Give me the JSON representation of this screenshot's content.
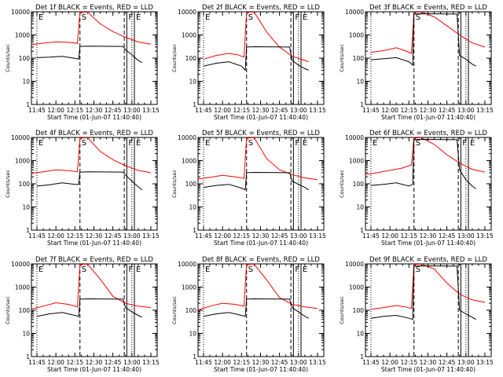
{
  "colors": {
    "events": "#000000",
    "lld": "#ff0000",
    "axis": "#000000",
    "background": "#ffffff"
  },
  "axis": {
    "xticks": [
      "11:45",
      "12:00",
      "12:15",
      "12:30",
      "12:45",
      "13:00",
      "13:15"
    ],
    "xtick_minutes": [
      0,
      15,
      30,
      45,
      60,
      75,
      90
    ],
    "yticks": [
      "1",
      "10",
      "100",
      "1000",
      "10000"
    ],
    "ylabel": "Counts/sec",
    "xlabel": "Start Time (01-Jun-07 11:40:40)"
  },
  "chart_data": [
    {
      "type": "line",
      "title": "Det 1f BLACK = Events, RED = LLD",
      "xlabel": "Start Time (01-Jun-07 11:40:40)",
      "ylabel": "Counts/sec",
      "xlim": [
        "11:40:40",
        "13:20:00"
      ],
      "ylim": [
        1,
        10000
      ],
      "yscale": "log",
      "grid": false,
      "markers": [
        {
          "label": "E",
          "x": "11:45",
          "style": "dotted"
        },
        {
          "label": "S",
          "x": "12:19",
          "style": "dashed"
        },
        {
          "label": "",
          "x": "12:54",
          "style": "dashed"
        },
        {
          "label": "F",
          "x": "12:56",
          "style": "solid"
        },
        {
          "label": "",
          "x": "13:00",
          "style": "dotted"
        },
        {
          "label": "E",
          "x": "13:02",
          "style": "solid"
        }
      ],
      "series": [
        {
          "color": "red",
          "x": [
            "11:40",
            "11:50",
            "12:00",
            "12:10",
            "12:17",
            "12:19",
            "12:25",
            "12:35",
            "12:45",
            "12:55",
            "13:05",
            "13:15"
          ],
          "y": [
            380,
            440,
            500,
            480,
            430,
            9500,
            9800,
            3000,
            1400,
            800,
            500,
            400
          ]
        },
        {
          "color": "black",
          "x": [
            "11:45",
            "11:55",
            "12:05",
            "12:15",
            "12:18",
            "12:19",
            "12:25",
            "12:53",
            "12:55",
            "13:00",
            "13:05",
            "13:08"
          ],
          "y": [
            105,
            110,
            120,
            98,
            90,
            320,
            330,
            320,
            230,
            140,
            80,
            65
          ]
        }
      ]
    },
    {
      "type": "line",
      "title": "Det 2f BLACK = Events, RED = LLD",
      "xlabel": "Start Time (01-Jun-07 11:40:40)",
      "ylabel": "Counts/sec",
      "xlim": [
        "11:40:40",
        "13:20:00"
      ],
      "ylim": [
        1,
        10000
      ],
      "yscale": "log",
      "grid": false,
      "markers": [
        {
          "label": "E",
          "x": "11:45",
          "style": "dotted"
        },
        {
          "label": "S",
          "x": "12:19",
          "style": "dashed"
        },
        {
          "label": "",
          "x": "12:54",
          "style": "dashed"
        },
        {
          "label": "F",
          "x": "12:56",
          "style": "solid"
        },
        {
          "label": "",
          "x": "13:00",
          "style": "dotted"
        },
        {
          "label": "E",
          "x": "13:02",
          "style": "solid"
        }
      ],
      "series": [
        {
          "color": "red",
          "x": [
            "11:45",
            "11:55",
            "12:05",
            "12:12",
            "12:17",
            "12:19",
            "12:25",
            "12:35",
            "12:45",
            "12:55",
            "13:05",
            "13:08"
          ],
          "y": [
            90,
            130,
            160,
            140,
            110,
            9500,
            9800,
            1300,
            300,
            120,
            80,
            70
          ]
        },
        {
          "color": "black",
          "x": [
            "11:45",
            "11:55",
            "12:05",
            "12:15",
            "12:18",
            "12:19",
            "12:25",
            "12:53",
            "12:55",
            "13:00",
            "13:05",
            "13:08"
          ],
          "y": [
            45,
            60,
            70,
            45,
            30,
            300,
            310,
            300,
            80,
            50,
            35,
            30
          ]
        }
      ]
    },
    {
      "type": "line",
      "title": "Det 3f BLACK = Events, RED = LLD",
      "xlabel": "Start Time (01-Jun-07 11:40:40)",
      "ylabel": "Counts/sec",
      "xlim": [
        "11:40:40",
        "13:20:00"
      ],
      "ylim": [
        1,
        10000
      ],
      "yscale": "log",
      "grid": false,
      "markers": [
        {
          "label": "",
          "x": "11:45",
          "style": "dotted"
        },
        {
          "label": "S",
          "x": "12:19",
          "style": "dashed"
        },
        {
          "label": "",
          "x": "12:54",
          "style": "dashed"
        },
        {
          "label": "",
          "x": "12:56",
          "style": "solid"
        },
        {
          "label": "",
          "x": "13:00",
          "style": "dotted"
        },
        {
          "label": "",
          "x": "13:02",
          "style": "solid"
        }
      ],
      "series": [
        {
          "color": "red",
          "x": [
            "11:45",
            "11:55",
            "12:05",
            "12:12",
            "12:17",
            "12:19",
            "12:25",
            "12:35",
            "12:45",
            "12:55",
            "13:05",
            "13:15"
          ],
          "y": [
            180,
            210,
            280,
            210,
            160,
            9500,
            9800,
            6000,
            2500,
            1000,
            450,
            300
          ]
        },
        {
          "color": "black",
          "x": [
            "11:45",
            "11:55",
            "12:05",
            "12:15",
            "12:18",
            "12:19",
            "12:25",
            "12:53",
            "12:55",
            "13:00",
            "13:05",
            "13:08"
          ],
          "y": [
            85,
            95,
            105,
            70,
            50,
            8000,
            8200,
            8000,
            130,
            90,
            55,
            45
          ]
        }
      ]
    },
    {
      "type": "line",
      "title": "Det 4f BLACK = Events, RED = LLD",
      "xlabel": "Start Time (01-Jun-07 11:40:40)",
      "ylabel": "Counts/sec",
      "xlim": [
        "11:40:40",
        "13:20:00"
      ],
      "ylim": [
        1,
        10000
      ],
      "yscale": "log",
      "grid": false,
      "markers": [
        {
          "label": "E",
          "x": "11:45",
          "style": "dotted"
        },
        {
          "label": "S",
          "x": "12:19",
          "style": "dashed"
        },
        {
          "label": "",
          "x": "12:54",
          "style": "dashed"
        },
        {
          "label": "F",
          "x": "12:56",
          "style": "solid"
        },
        {
          "label": "",
          "x": "13:00",
          "style": "dotted"
        },
        {
          "label": "E",
          "x": "13:02",
          "style": "solid"
        }
      ],
      "series": [
        {
          "color": "red",
          "x": [
            "11:40",
            "11:50",
            "12:00",
            "12:10",
            "12:17",
            "12:19",
            "12:25",
            "12:35",
            "12:45",
            "12:55",
            "13:05",
            "13:15"
          ],
          "y": [
            280,
            330,
            400,
            370,
            330,
            9500,
            9800,
            2500,
            1100,
            600,
            380,
            300
          ]
        },
        {
          "color": "black",
          "x": [
            "11:45",
            "11:55",
            "12:05",
            "12:15",
            "12:18",
            "12:19",
            "12:25",
            "12:53",
            "12:55",
            "13:00",
            "13:05",
            "13:08"
          ],
          "y": [
            80,
            90,
            110,
            95,
            95,
            320,
            330,
            320,
            240,
            130,
            75,
            55
          ]
        }
      ]
    },
    {
      "type": "line",
      "title": "Det 5f BLACK = Events, RED = LLD",
      "xlabel": "Start Time (01-Jun-07 11:40:40)",
      "ylabel": "Counts/sec",
      "xlim": [
        "11:40:40",
        "13:20:00"
      ],
      "ylim": [
        1,
        10000
      ],
      "yscale": "log",
      "grid": false,
      "markers": [
        {
          "label": "E",
          "x": "11:45",
          "style": "dotted"
        },
        {
          "label": "S",
          "x": "12:19",
          "style": "dashed"
        },
        {
          "label": "",
          "x": "12:54",
          "style": "dashed"
        },
        {
          "label": "F",
          "x": "12:56",
          "style": "solid"
        },
        {
          "label": "",
          "x": "13:00",
          "style": "dotted"
        },
        {
          "label": "E",
          "x": "13:02",
          "style": "solid"
        }
      ],
      "series": [
        {
          "color": "red",
          "x": [
            "11:40",
            "11:50",
            "12:00",
            "12:10",
            "12:17",
            "12:19",
            "12:25",
            "12:35",
            "12:45",
            "12:55",
            "13:05",
            "13:15"
          ],
          "y": [
            160,
            190,
            230,
            200,
            170,
            9500,
            9800,
            1200,
            400,
            250,
            180,
            150
          ]
        },
        {
          "color": "black",
          "x": [
            "11:45",
            "11:55",
            "12:05",
            "12:15",
            "12:18",
            "12:19",
            "12:25",
            "12:53",
            "12:55",
            "13:00",
            "13:05",
            "13:08"
          ],
          "y": [
            70,
            85,
            95,
            65,
            55,
            300,
            310,
            300,
            130,
            95,
            70,
            55
          ]
        }
      ]
    },
    {
      "type": "line",
      "title": "Det 6f BLACK = Events, RED = LLD",
      "xlabel": "Start Time (01-Jun-07 11:40:40)",
      "ylabel": "Counts/sec",
      "xlim": [
        "11:40:40",
        "13:20:00"
      ],
      "ylim": [
        1,
        10000
      ],
      "yscale": "log",
      "grid": false,
      "markers": [
        {
          "label": "E",
          "x": "11:45",
          "style": "dotted"
        },
        {
          "label": "S",
          "x": "12:19",
          "style": "dashed"
        },
        {
          "label": "",
          "x": "12:54",
          "style": "dashed"
        },
        {
          "label": "F",
          "x": "12:56",
          "style": "solid"
        },
        {
          "label": "",
          "x": "13:00",
          "style": "dotted"
        },
        {
          "label": "E",
          "x": "13:02",
          "style": "solid"
        }
      ],
      "series": [
        {
          "color": "red",
          "x": [
            "11:40",
            "11:50",
            "12:00",
            "12:10",
            "12:17",
            "12:19",
            "12:25",
            "12:35",
            "12:45",
            "12:55",
            "13:05",
            "13:15"
          ],
          "y": [
            250,
            300,
            380,
            480,
            650,
            9500,
            9800,
            5000,
            1800,
            800,
            420,
            320
          ]
        },
        {
          "color": "black",
          "x": [
            "11:45",
            "11:55",
            "12:05",
            "12:15",
            "12:18",
            "12:19",
            "12:25",
            "12:53",
            "12:55",
            "13:00",
            "13:05",
            "13:08"
          ],
          "y": [
            85,
            95,
            110,
            80,
            95,
            8000,
            8200,
            8000,
            400,
            150,
            80,
            60
          ]
        }
      ]
    },
    {
      "type": "line",
      "title": "Det 7f BLACK = Events, RED = LLD",
      "xlabel": "Start Time (01-Jun-07 11:40:40)",
      "ylabel": "Counts/sec",
      "xlim": [
        "11:40:40",
        "13:20:00"
      ],
      "ylim": [
        1,
        10000
      ],
      "yscale": "log",
      "grid": false,
      "markers": [
        {
          "label": "E",
          "x": "11:45",
          "style": "dotted"
        },
        {
          "label": "S",
          "x": "12:19",
          "style": "dashed"
        },
        {
          "label": "",
          "x": "12:54",
          "style": "dashed"
        },
        {
          "label": "F",
          "x": "12:56",
          "style": "solid"
        },
        {
          "label": "",
          "x": "13:00",
          "style": "dotted"
        },
        {
          "label": "E",
          "x": "13:02",
          "style": "solid"
        }
      ],
      "series": [
        {
          "color": "red",
          "x": [
            "11:40",
            "11:50",
            "12:00",
            "12:10",
            "12:17",
            "12:19",
            "12:25",
            "12:35",
            "12:45",
            "12:55",
            "13:05",
            "13:15"
          ],
          "y": [
            110,
            150,
            210,
            180,
            140,
            9500,
            9800,
            2200,
            400,
            200,
            150,
            130
          ]
        },
        {
          "color": "black",
          "x": [
            "11:45",
            "11:55",
            "12:05",
            "12:15",
            "12:18",
            "12:19",
            "12:25",
            "12:53",
            "12:55",
            "13:00",
            "13:05",
            "13:08"
          ],
          "y": [
            55,
            70,
            80,
            60,
            55,
            300,
            310,
            300,
            130,
            85,
            60,
            50
          ]
        }
      ]
    },
    {
      "type": "line",
      "title": "Det 8f BLACK = Events, RED = LLD",
      "xlabel": "Start Time (01-Jun-07 11:40:40)",
      "ylabel": "Counts/sec",
      "xlim": [
        "11:40:40",
        "13:20:00"
      ],
      "ylim": [
        1,
        10000
      ],
      "yscale": "log",
      "grid": false,
      "markers": [
        {
          "label": "E",
          "x": "11:45",
          "style": "dotted"
        },
        {
          "label": "S",
          "x": "12:19",
          "style": "dashed"
        },
        {
          "label": "",
          "x": "12:54",
          "style": "dashed"
        },
        {
          "label": "F",
          "x": "12:56",
          "style": "solid"
        },
        {
          "label": "",
          "x": "13:00",
          "style": "dotted"
        },
        {
          "label": "E",
          "x": "13:02",
          "style": "solid"
        }
      ],
      "series": [
        {
          "color": "red",
          "x": [
            "11:40",
            "11:50",
            "12:00",
            "12:10",
            "12:17",
            "12:19",
            "12:25",
            "12:35",
            "12:45",
            "12:55",
            "13:05",
            "13:15"
          ],
          "y": [
            100,
            150,
            200,
            180,
            150,
            9500,
            9800,
            2000,
            350,
            180,
            140,
            120
          ]
        },
        {
          "color": "black",
          "x": [
            "11:45",
            "11:55",
            "12:05",
            "12:15",
            "12:18",
            "12:19",
            "12:25",
            "12:53",
            "12:55",
            "13:00",
            "13:05",
            "13:08"
          ],
          "y": [
            55,
            70,
            80,
            60,
            55,
            300,
            310,
            300,
            130,
            85,
            55,
            45
          ]
        }
      ]
    },
    {
      "type": "line",
      "title": "Det 9f BLACK = Events, RED = LLD",
      "xlabel": "Start Time (01-Jun-07 11:40:40)",
      "ylabel": "Counts/sec",
      "xlim": [
        "11:40:40",
        "13:20:00"
      ],
      "ylim": [
        1,
        10000
      ],
      "yscale": "log",
      "grid": false,
      "markers": [
        {
          "label": "",
          "x": "11:45",
          "style": "dotted"
        },
        {
          "label": "S",
          "x": "12:19",
          "style": "dashed"
        },
        {
          "label": "",
          "x": "12:54",
          "style": "dashed"
        },
        {
          "label": "",
          "x": "12:56",
          "style": "solid"
        },
        {
          "label": "",
          "x": "13:00",
          "style": "dotted"
        },
        {
          "label": "",
          "x": "13:02",
          "style": "solid"
        }
      ],
      "series": [
        {
          "color": "red",
          "x": [
            "11:45",
            "11:55",
            "12:05",
            "12:12",
            "12:17",
            "12:19",
            "12:25",
            "12:35",
            "12:45",
            "12:55",
            "13:05",
            "13:15"
          ],
          "y": [
            110,
            130,
            160,
            140,
            120,
            9500,
            9800,
            6000,
            1500,
            500,
            280,
            220
          ]
        },
        {
          "color": "black",
          "x": [
            "11:45",
            "11:55",
            "12:05",
            "12:15",
            "12:18",
            "12:19",
            "12:25",
            "12:53",
            "12:55",
            "13:00",
            "13:05",
            "13:08"
          ],
          "y": [
            45,
            55,
            60,
            45,
            40,
            8000,
            8200,
            8000,
            100,
            70,
            50,
            40
          ]
        }
      ]
    }
  ]
}
